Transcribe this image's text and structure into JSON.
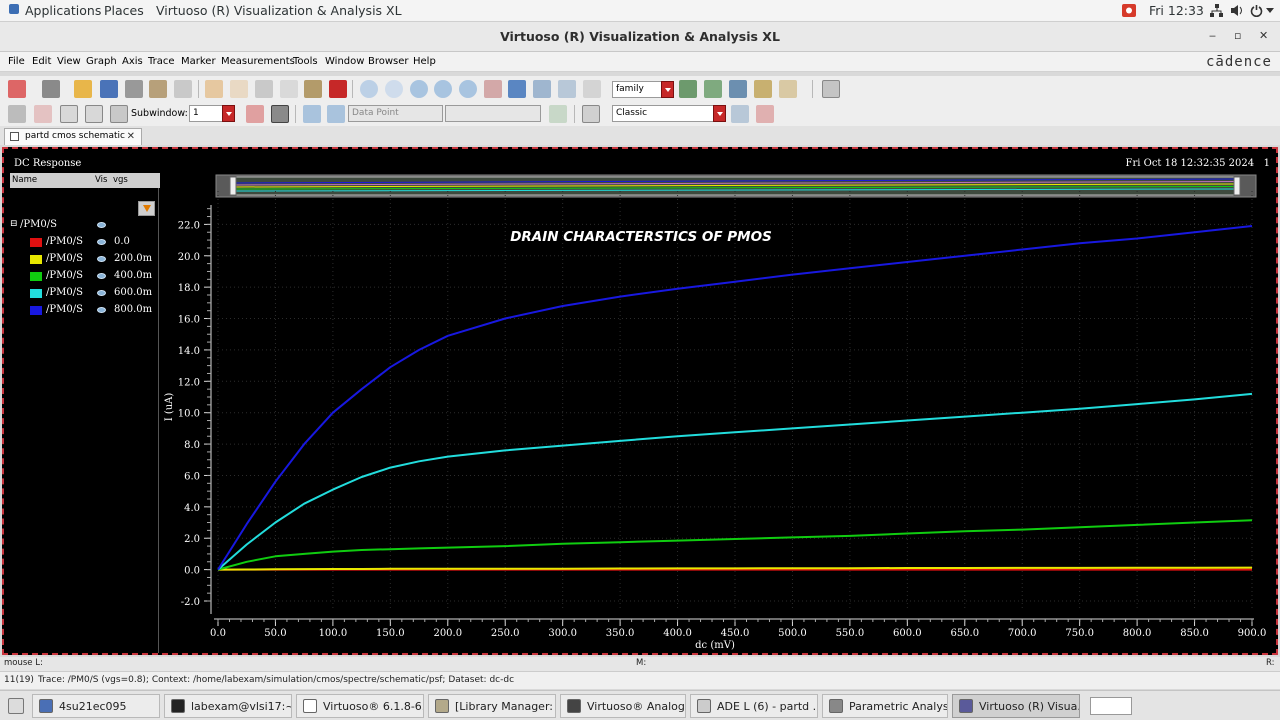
{
  "top": {
    "applications": "Applications",
    "places": "Places",
    "active_app": "Virtuoso (R) Visualization & Analysis XL",
    "clock": "Fri 12:33"
  },
  "window": {
    "title": "Virtuoso (R) Visualization & Analysis XL"
  },
  "menu": [
    "File",
    "Edit",
    "View",
    "Graph",
    "Axis",
    "Trace",
    "Marker",
    "Measurements",
    "Tools",
    "Window",
    "Browser",
    "Help"
  ],
  "logo": "cādence",
  "toolbar": {
    "family_value": "family",
    "subwindow_label": "Subwindow:",
    "subwindow_value": "1",
    "datapoint_value": "Data Point",
    "style_value": "Classic"
  },
  "tab": {
    "label": "partd cmos schematic"
  },
  "graph": {
    "header_left": "DC Response",
    "header_right": "Fri Oct 18 12:32:35 2024",
    "subwindow_index": "1"
  },
  "legend": {
    "col_name": "Name",
    "col_vis": "Vis",
    "col_vgs": "vgs",
    "group": "/PM0/S",
    "rows": [
      {
        "name": "/PM0/S",
        "vgs": "0.0",
        "color": "#e01010"
      },
      {
        "name": "/PM0/S",
        "vgs": "200.0m",
        "color": "#e8e800"
      },
      {
        "name": "/PM0/S",
        "vgs": "400.0m",
        "color": "#10cc10"
      },
      {
        "name": "/PM0/S",
        "vgs": "600.0m",
        "color": "#22dddd"
      },
      {
        "name": "/PM0/S",
        "vgs": "800.0m",
        "color": "#1818e0"
      }
    ]
  },
  "chart_data": {
    "type": "line",
    "title": "DRAIN CHARACTERSTICS OF PMOS",
    "xlabel": "dc (mV)",
    "ylabel": "I (uA)",
    "xlim": [
      0,
      900
    ],
    "ylim": [
      -2,
      24
    ],
    "x_ticks": [
      "0.0",
      "50.0",
      "100.0",
      "150.0",
      "200.0",
      "250.0",
      "300.0",
      "350.0",
      "400.0",
      "450.0",
      "500.0",
      "550.0",
      "600.0",
      "650.0",
      "700.0",
      "750.0",
      "800.0",
      "850.0",
      "900.0"
    ],
    "y_ticks": [
      "-2.0",
      "0.0",
      "2.0",
      "4.0",
      "6.0",
      "8.0",
      "10.0",
      "12.0",
      "14.0",
      "16.0",
      "18.0",
      "20.0",
      "22.0"
    ],
    "x": [
      0,
      25,
      50,
      75,
      100,
      125,
      150,
      175,
      200,
      250,
      300,
      350,
      400,
      450,
      500,
      550,
      600,
      650,
      700,
      750,
      800,
      850,
      900
    ],
    "series": [
      {
        "name": "800.0m",
        "color": "#1818e0",
        "values": [
          0,
          2.9,
          5.6,
          8.0,
          10.0,
          11.5,
          12.9,
          14.0,
          14.9,
          16.0,
          16.8,
          17.4,
          17.9,
          18.35,
          18.8,
          19.2,
          19.6,
          20.0,
          20.4,
          20.8,
          21.1,
          21.5,
          21.9
        ]
      },
      {
        "name": "600.0m",
        "color": "#22dddd",
        "values": [
          0,
          1.6,
          3.0,
          4.2,
          5.1,
          5.9,
          6.5,
          6.9,
          7.2,
          7.6,
          7.9,
          8.2,
          8.5,
          8.75,
          9.0,
          9.25,
          9.5,
          9.75,
          10.0,
          10.25,
          10.55,
          10.85,
          11.2
        ]
      },
      {
        "name": "400.0m",
        "color": "#10cc10",
        "values": [
          0,
          0.5,
          0.85,
          1.0,
          1.15,
          1.25,
          1.3,
          1.35,
          1.4,
          1.5,
          1.65,
          1.75,
          1.85,
          1.95,
          2.05,
          2.15,
          2.3,
          2.45,
          2.55,
          2.7,
          2.85,
          3.0,
          3.15
        ]
      },
      {
        "name": "200.0m",
        "color": "#e8e800",
        "values": [
          0,
          0.01,
          0.02,
          0.03,
          0.04,
          0.04,
          0.05,
          0.05,
          0.05,
          0.06,
          0.06,
          0.07,
          0.08,
          0.08,
          0.09,
          0.09,
          0.1,
          0.1,
          0.11,
          0.11,
          0.12,
          0.12,
          0.13
        ]
      },
      {
        "name": "0.0",
        "color": "#e01010",
        "values": [
          0,
          0,
          0,
          0,
          0,
          0,
          0,
          0,
          0,
          0,
          0,
          0,
          0,
          0,
          0,
          0,
          0,
          0,
          0,
          0,
          0,
          0,
          0
        ]
      }
    ]
  },
  "status": {
    "mouse": "mouse L:",
    "middle": "M:",
    "right": "R:",
    "count": "11(19)",
    "message": "Trace: /PM0/S (vgs=0.8); Context: /home/labexam/simulation/cmos/spectre/schematic/psf; Dataset: dc-dc"
  },
  "taskbar": [
    {
      "label": "4su21ec095",
      "color": "#4a6fb5"
    },
    {
      "label": "labexam@vlsi17:~/...",
      "color": "#222222"
    },
    {
      "label": "Virtuoso® 6.1.8-6...",
      "color": "#ffffff"
    },
    {
      "label": "[Library Manager: ...",
      "color": "#b3a98a"
    },
    {
      "label": "Virtuoso® Analog ...",
      "color": "#444444"
    },
    {
      "label": "ADE L (6) - partd ...",
      "color": "#cccccc"
    },
    {
      "label": "Parametric Analysi...",
      "color": "#888888"
    },
    {
      "label": "Virtuoso (R) Visua...",
      "color": "#5a5a9a"
    }
  ]
}
